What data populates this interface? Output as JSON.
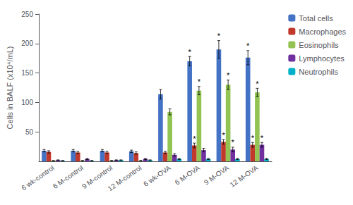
{
  "chart_data": {
    "type": "bar",
    "categories": [
      "6 wk-control",
      "6 M-control",
      "9 M-control",
      "12 M-control",
      "6 wk-OVA",
      "6 M-OVA",
      "9 M-OVA",
      "12 M-OVA"
    ],
    "series": [
      {
        "name": "Total cells",
        "color": "#4472c4",
        "values": [
          18,
          18,
          18,
          17,
          114,
          170,
          190,
          176
        ],
        "errors": [
          2,
          2,
          2,
          2,
          8,
          8,
          15,
          12
        ],
        "stars": [
          null,
          null,
          null,
          null,
          null,
          "*",
          "*",
          "*"
        ]
      },
      {
        "name": "Macrophages",
        "color": "#c0392b",
        "values": [
          16,
          15,
          15,
          14,
          15,
          27,
          33,
          28
        ],
        "errors": [
          2,
          2,
          2,
          2,
          2,
          4,
          4,
          4
        ],
        "stars": [
          null,
          null,
          null,
          null,
          null,
          "*",
          "*",
          "*"
        ]
      },
      {
        "name": "Eosinophils",
        "color": "#92c353",
        "values": [
          1,
          1,
          1,
          1,
          84,
          120,
          130,
          117
        ],
        "errors": [
          0.5,
          0.5,
          0.5,
          0.5,
          5,
          7,
          8,
          7
        ],
        "stars": [
          null,
          null,
          null,
          null,
          null,
          "*",
          "*",
          "*"
        ]
      },
      {
        "name": "Lymphocytes",
        "color": "#7030a0",
        "values": [
          2,
          4,
          2,
          4,
          11,
          19,
          20,
          28
        ],
        "errors": [
          0.5,
          1,
          0.5,
          1,
          2,
          3,
          4,
          4
        ],
        "stars": [
          null,
          null,
          null,
          null,
          null,
          null,
          "*",
          "*"
        ]
      },
      {
        "name": "Neutrophils",
        "color": "#00b0c8",
        "values": [
          1,
          1,
          2,
          2,
          4,
          4,
          4,
          4
        ],
        "errors": [
          0.5,
          0.5,
          0.5,
          0.5,
          1,
          1,
          1,
          1
        ],
        "stars": [
          null,
          null,
          null,
          null,
          null,
          null,
          null,
          null
        ]
      }
    ],
    "ylabel": "Cells in BALF (x10⁴/mL)",
    "ylim": [
      0,
      250
    ],
    "yticks": [
      50,
      100,
      150,
      200,
      250
    ],
    "grid": false,
    "legend": "upper right"
  }
}
